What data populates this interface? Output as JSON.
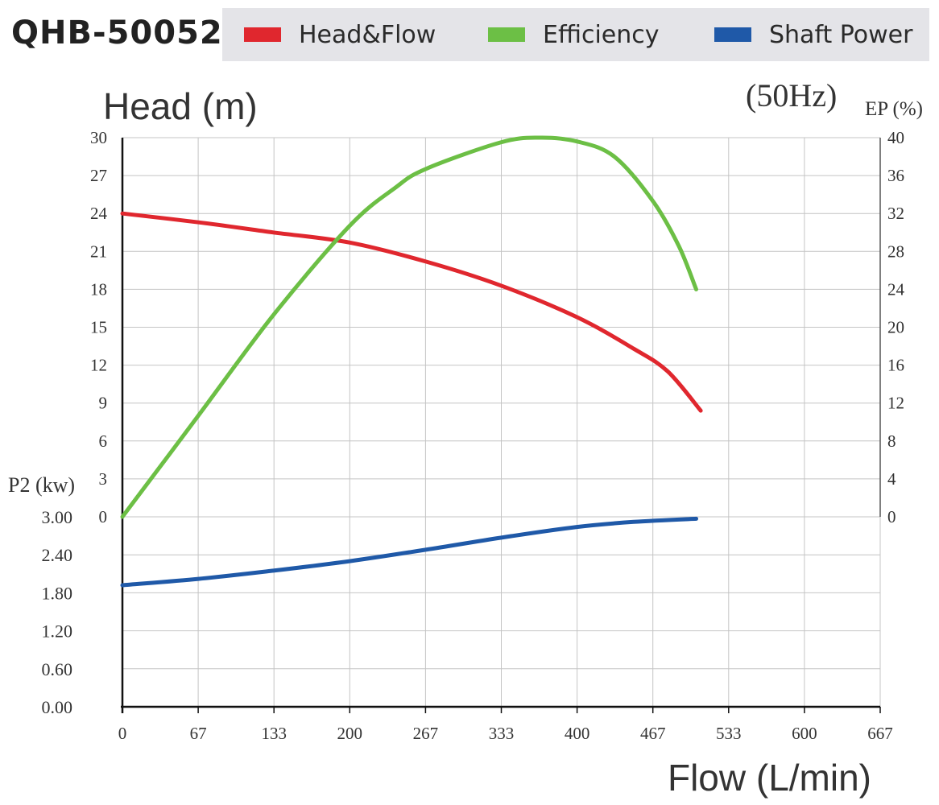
{
  "model_title": "QHB-50052",
  "legend": [
    {
      "label": "Head&Flow",
      "color": "#e0272e"
    },
    {
      "label": "Efficiency",
      "color": "#6cbf45"
    },
    {
      "label": "Shaft Power",
      "color": "#1f59a8"
    }
  ],
  "chart_data": {
    "type": "line",
    "frequency_label": "(50Hz)",
    "xlabel": "Flow (L/min)",
    "x_ticks": [
      "0",
      "67",
      "133",
      "200",
      "267",
      "333",
      "400",
      "467",
      "533",
      "600",
      "667"
    ],
    "xlim": [
      0,
      667
    ],
    "axes": {
      "head": {
        "label": "Head (m)",
        "ticks": [
          "30",
          "27",
          "24",
          "21",
          "18",
          "15",
          "12",
          "9",
          "6",
          "3",
          "0"
        ],
        "ylim": [
          0,
          30
        ]
      },
      "efficiency": {
        "label": "EP (%)",
        "ticks": [
          "40",
          "36",
          "32",
          "28",
          "24",
          "20",
          "16",
          "12",
          "8",
          "4",
          "0"
        ],
        "ylim": [
          0,
          40
        ]
      },
      "power": {
        "label": "P2 (kw)",
        "ticks": [
          "3.00",
          "2.40",
          "1.80",
          "1.20",
          "0.60",
          "0.00"
        ],
        "ylim": [
          0,
          3
        ]
      }
    },
    "series": [
      {
        "name": "Head&Flow",
        "axis": "head",
        "color": "#e0272e",
        "x": [
          0,
          67,
          133,
          200,
          267,
          333,
          400,
          450,
          480,
          509
        ],
        "y": [
          24,
          23.3,
          22.5,
          21.7,
          20.2,
          18.3,
          15.8,
          13.3,
          11.5,
          8.4
        ]
      },
      {
        "name": "Efficiency",
        "axis": "efficiency",
        "color": "#6cbf45",
        "x": [
          0,
          67,
          133,
          200,
          240,
          267,
          333,
          367,
          400,
          433,
          467,
          490,
          505
        ],
        "y": [
          0,
          10.7,
          21.3,
          30.7,
          34.7,
          36.7,
          39.5,
          40,
          39.6,
          38,
          33.3,
          28.5,
          24
        ]
      },
      {
        "name": "Shaft Power",
        "axis": "power",
        "color": "#1f59a8",
        "x": [
          0,
          67,
          133,
          200,
          267,
          333,
          400,
          450,
          505
        ],
        "y": [
          1.92,
          2.02,
          2.15,
          2.3,
          2.48,
          2.67,
          2.84,
          2.92,
          2.97
        ]
      }
    ]
  }
}
